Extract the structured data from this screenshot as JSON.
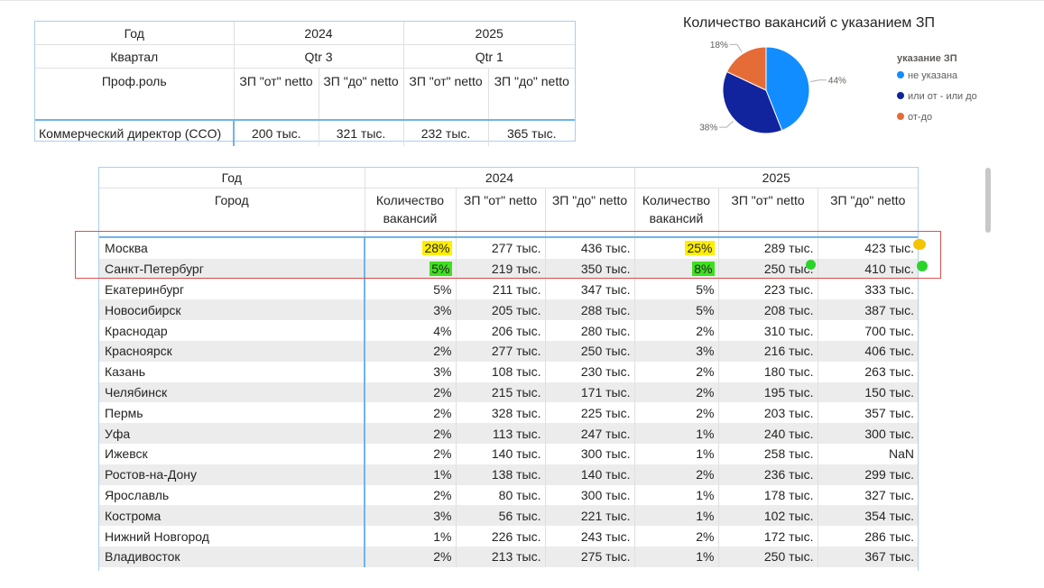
{
  "top_matrix": {
    "year_label": "Год",
    "quarter_label": "Квартал",
    "role_label": "Проф.роль",
    "years": [
      "2024",
      "2025"
    ],
    "quarters": [
      "Qtr 3",
      "Qtr 1"
    ],
    "measures": [
      "ЗП \"от\" netto",
      "ЗП \"до\" netto",
      "ЗП \"от\" netto",
      "ЗП \"до\" netto"
    ],
    "role": "Коммерческий директор (CCO)",
    "values": [
      "200 тыс.",
      "321 тыс.",
      "232 тыс.",
      "365 тыс."
    ]
  },
  "chart_data": {
    "type": "pie",
    "title": "Количество вакансий с указанием ЗП",
    "legend_title": "указание ЗП",
    "legend_position": "right",
    "slices": [
      {
        "name": "не указана",
        "value": 44,
        "label": "44%",
        "color": "#118dff"
      },
      {
        "name": "или от - или до",
        "value": 38,
        "label": "38%",
        "color": "#12239e"
      },
      {
        "name": "от-до",
        "value": 18,
        "label": "18%",
        "color": "#e66c37"
      }
    ]
  },
  "main_table": {
    "year_label": "Год",
    "city_label": "Город",
    "years": [
      "2024",
      "2025"
    ],
    "measures": [
      "Количество вакансий",
      "ЗП \"от\" netto",
      "ЗП \"до\" netto"
    ],
    "rows": [
      {
        "city": "Москва",
        "v": [
          "28%",
          "277 тыс.",
          "436 тыс.",
          "25%",
          "289 тыс.",
          "423 тыс."
        ]
      },
      {
        "city": "Санкт-Петербург",
        "v": [
          "5%",
          "219 тыс.",
          "350 тыс.",
          "8%",
          "250 тыс.",
          "410 тыс."
        ]
      },
      {
        "city": "Екатеринбург",
        "v": [
          "5%",
          "211 тыс.",
          "347 тыс.",
          "5%",
          "223 тыс.",
          "333 тыс."
        ]
      },
      {
        "city": "Новосибирск",
        "v": [
          "3%",
          "205 тыс.",
          "288 тыс.",
          "5%",
          "208 тыс.",
          "387 тыс."
        ]
      },
      {
        "city": "Краснодар",
        "v": [
          "4%",
          "206 тыс.",
          "280 тыс.",
          "2%",
          "310 тыс.",
          "700 тыс."
        ]
      },
      {
        "city": "Красноярск",
        "v": [
          "2%",
          "277 тыс.",
          "250 тыс.",
          "3%",
          "216 тыс.",
          "406 тыс."
        ]
      },
      {
        "city": "Казань",
        "v": [
          "3%",
          "108 тыс.",
          "230 тыс.",
          "2%",
          "180 тыс.",
          "263 тыс."
        ]
      },
      {
        "city": "Челябинск",
        "v": [
          "2%",
          "215 тыс.",
          "171 тыс.",
          "2%",
          "195 тыс.",
          "150 тыс."
        ]
      },
      {
        "city": "Пермь",
        "v": [
          "2%",
          "328 тыс.",
          "225 тыс.",
          "2%",
          "203 тыс.",
          "357 тыс."
        ]
      },
      {
        "city": "Уфа",
        "v": [
          "2%",
          "113 тыс.",
          "247 тыс.",
          "1%",
          "240 тыс.",
          "300 тыс."
        ]
      },
      {
        "city": "Ижевск",
        "v": [
          "2%",
          "140 тыс.",
          "300 тыс.",
          "1%",
          "258 тыс.",
          "NaN"
        ]
      },
      {
        "city": "Ростов-на-Дону",
        "v": [
          "1%",
          "138 тыс.",
          "140 тыс.",
          "2%",
          "236 тыс.",
          "299 тыс."
        ]
      },
      {
        "city": "Ярославль",
        "v": [
          "2%",
          "80 тыс.",
          "300 тыс.",
          "1%",
          "178 тыс.",
          "327 тыс."
        ]
      },
      {
        "city": "Кострома",
        "v": [
          "3%",
          "56 тыс.",
          "221 тыс.",
          "1%",
          "102 тыс.",
          "354 тыс."
        ]
      },
      {
        "city": "Нижний Новгород",
        "v": [
          "1%",
          "226 тыс.",
          "243 тыс.",
          "2%",
          "172 тыс.",
          "286 тыс."
        ]
      },
      {
        "city": "Владивосток",
        "v": [
          "2%",
          "213 тыс.",
          "275 тыс.",
          "1%",
          "250 тыс.",
          "367 тыс."
        ]
      }
    ]
  }
}
